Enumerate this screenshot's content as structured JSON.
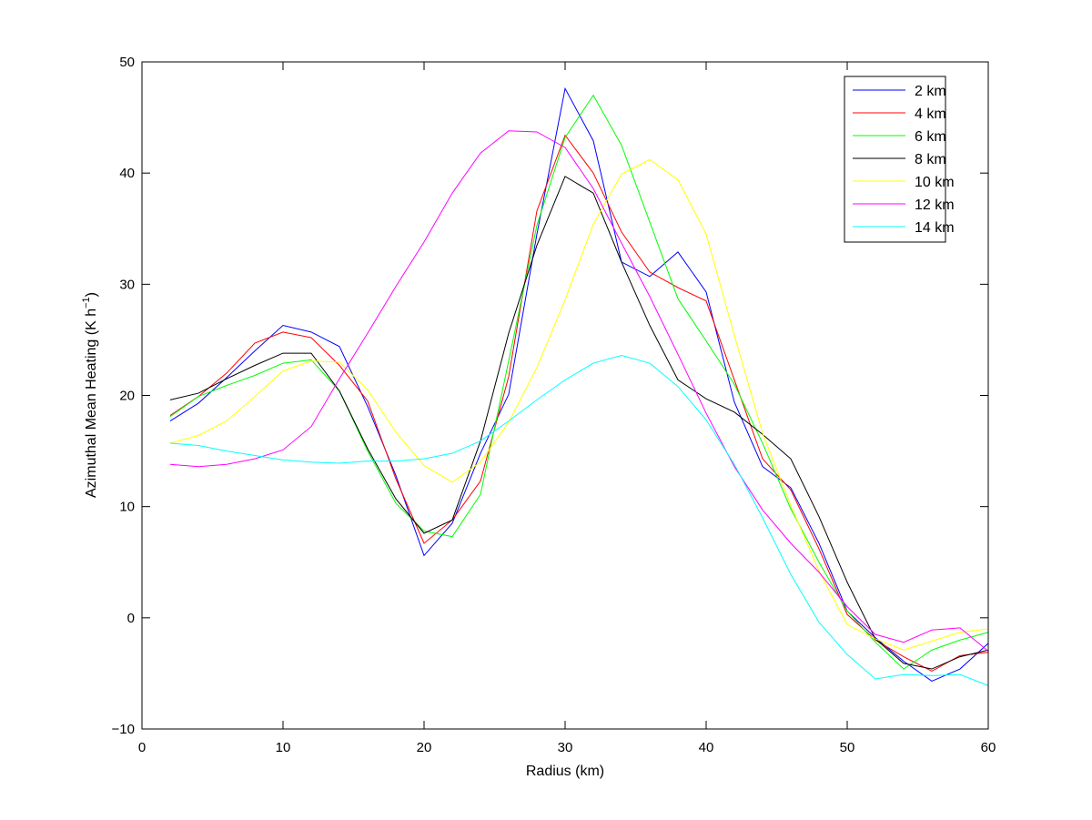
{
  "chart_data": {
    "type": "line",
    "xlabel": "Radius (km)",
    "ylabel": "Azimuthal Mean Heating (K h",
    "ylabel_superscript": "−1",
    "ylabel_suffix": ")",
    "xlim": [
      0,
      60
    ],
    "ylim": [
      -10,
      50
    ],
    "xticks": [
      0,
      10,
      20,
      30,
      40,
      50,
      60
    ],
    "yticks": [
      -10,
      0,
      10,
      20,
      30,
      40,
      50
    ],
    "grid": false,
    "legend_position": "top-right",
    "x": [
      2,
      4,
      6,
      8,
      10,
      12,
      14,
      16,
      18,
      20,
      22,
      24,
      26,
      28,
      30,
      32,
      34,
      36,
      38,
      40,
      42,
      44,
      46,
      48,
      50,
      52,
      54,
      56,
      58,
      60
    ],
    "series": [
      {
        "name": "2 km",
        "color": "#0000ff",
        "values": [
          17.7,
          19.3,
          21.6,
          24.0,
          26.3,
          25.7,
          24.4,
          19.0,
          12.8,
          5.6,
          8.5,
          14.8,
          20.1,
          34.5,
          47.6,
          42.9,
          32.0,
          30.7,
          32.9,
          29.3,
          19.4,
          13.6,
          11.7,
          6.7,
          0.6,
          -1.8,
          -3.9,
          -5.7,
          -4.6,
          -2.3
        ]
      },
      {
        "name": "4 km",
        "color": "#ff0000",
        "values": [
          18.2,
          19.9,
          22.0,
          24.7,
          25.7,
          25.2,
          22.7,
          19.5,
          12.5,
          6.7,
          8.8,
          12.3,
          21.7,
          36.6,
          43.4,
          40.0,
          34.7,
          31.1,
          29.7,
          28.5,
          21.4,
          14.3,
          11.5,
          6.2,
          0.3,
          -2.0,
          -3.5,
          -4.8,
          -3.4,
          -3.1
        ]
      },
      {
        "name": "6 km",
        "color": "#00ff00",
        "values": [
          18.1,
          19.9,
          20.9,
          21.8,
          22.9,
          23.2,
          20.4,
          15.0,
          10.3,
          7.8,
          7.3,
          11.1,
          23.1,
          35.3,
          43.2,
          47.0,
          42.5,
          35.6,
          28.7,
          24.9,
          21.0,
          15.7,
          9.8,
          5.0,
          0.6,
          -2.2,
          -4.6,
          -2.9,
          -2.0,
          -1.3
        ]
      },
      {
        "name": "8 km",
        "color": "#000000",
        "values": [
          19.6,
          20.2,
          21.5,
          22.7,
          23.8,
          23.8,
          20.4,
          15.2,
          10.7,
          7.6,
          8.8,
          15.9,
          25.6,
          33.5,
          39.7,
          38.2,
          32.0,
          26.3,
          21.4,
          19.7,
          18.5,
          16.5,
          14.3,
          9.1,
          3.2,
          -1.9,
          -4.1,
          -4.6,
          -3.5,
          -2.9
        ]
      },
      {
        "name": "10 km",
        "color": "#ffff00",
        "values": [
          15.7,
          16.4,
          17.7,
          19.9,
          22.2,
          23.1,
          23.0,
          20.5,
          16.7,
          13.7,
          12.2,
          14.0,
          17.6,
          22.5,
          28.6,
          35.4,
          39.9,
          41.2,
          39.4,
          34.5,
          25.4,
          16.6,
          10.1,
          4.2,
          -0.6,
          -1.9,
          -2.9,
          -2.1,
          -1.3,
          -1.0
        ]
      },
      {
        "name": "12 km",
        "color": "#ff00ff",
        "values": [
          13.8,
          13.6,
          13.8,
          14.3,
          15.1,
          17.2,
          21.5,
          25.6,
          29.8,
          33.8,
          38.2,
          41.8,
          43.8,
          43.7,
          42.3,
          38.6,
          33.7,
          28.9,
          23.7,
          18.4,
          13.6,
          9.7,
          6.7,
          4.1,
          1.0,
          -1.5,
          -2.2,
          -1.1,
          -0.9,
          -3.0
        ]
      },
      {
        "name": "14 km",
        "color": "#00ffff",
        "values": [
          15.7,
          15.5,
          15.0,
          14.6,
          14.2,
          14.0,
          13.9,
          14.1,
          14.1,
          14.3,
          14.8,
          15.9,
          17.7,
          19.6,
          21.4,
          22.9,
          23.6,
          22.9,
          20.8,
          17.8,
          13.8,
          9.0,
          3.9,
          -0.4,
          -3.3,
          -5.5,
          -5.1,
          -5.2,
          -5.1,
          -6.1
        ]
      }
    ]
  }
}
